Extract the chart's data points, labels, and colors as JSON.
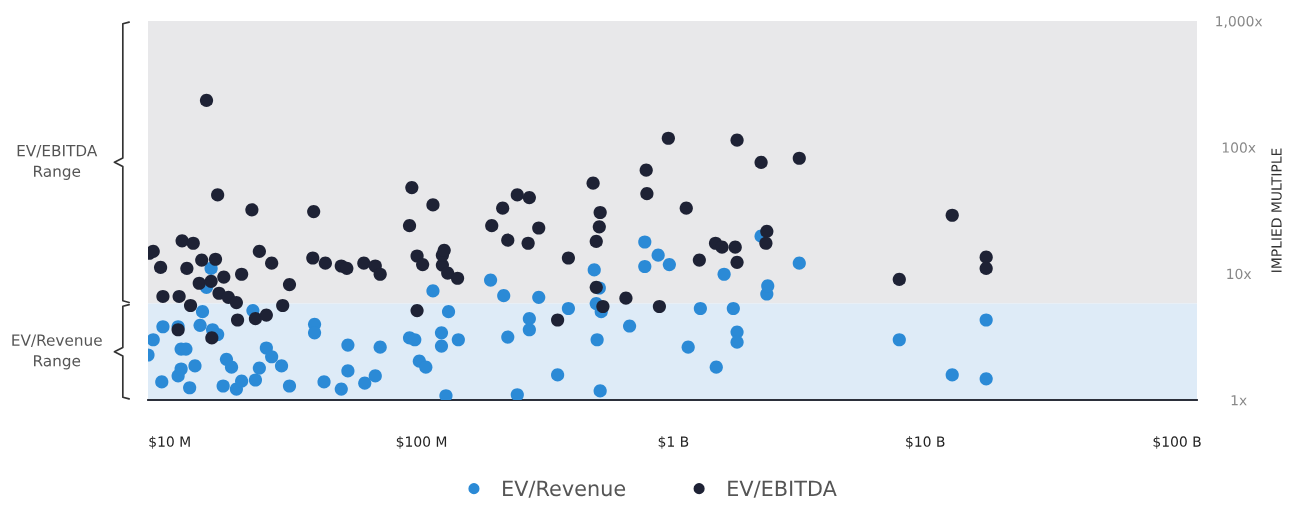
{
  "chart_data": {
    "type": "scatter",
    "ylabel": "IMPLIED MULTIPLE",
    "log": "xy",
    "xlim": [
      8200000.0,
      120000000000.0
    ],
    "ylim": [
      1,
      1000
    ],
    "xticks": [
      {
        "value": 10000000.0,
        "label": "$10 M"
      },
      {
        "value": 100000000.0,
        "label": "$100 M"
      },
      {
        "value": 1000000000.0,
        "label": "$1 B"
      },
      {
        "value": 10000000000.0,
        "label": "$10 B"
      },
      {
        "value": 100000000000.0,
        "label": "$100 B"
      }
    ],
    "yticks": [
      {
        "value": 1,
        "label": "1x"
      },
      {
        "value": 10,
        "label": "10x"
      },
      {
        "value": 100,
        "label": "100x"
      },
      {
        "value": 1000,
        "label": "1,000x"
      }
    ],
    "annotations": [
      "EV/EBITDA\nRange",
      "EV/Revenue\nRange"
    ],
    "grid": false,
    "legend": "bottom",
    "marker": "circle",
    "bands": [
      {
        "axis": "y",
        "from": 5.8,
        "to": 1000,
        "color": "#e8e8ea"
      },
      {
        "axis": "y",
        "from": 1,
        "to": 5.8,
        "color": "#deebf7"
      }
    ],
    "series": [
      {
        "name": "EV/Revenue",
        "color": "#2b8ad6",
        "x": [
          8200000.0,
          8600000.0,
          9300000.0,
          9400000.0,
          10800000.0,
          10800000.0,
          11100000.0,
          11100000.0,
          11600000.0,
          12000000.0,
          12600000.0,
          13200000.0,
          13500000.0,
          14600000.0,
          14000000.0,
          14800000.0,
          15500000.0,
          16300000.0,
          16800000.0,
          17600000.0,
          18400000.0,
          19300000.0,
          21400000.0,
          22700000.0,
          21900000.0,
          24200000.0,
          25400000.0,
          27800000.0,
          29900000.0,
          37600000.0,
          37600000.0,
          41000000.0,
          48000000.0,
          51000000.0,
          51000000.0,
          59500000.0,
          65500000.0,
          68500000.0,
          89600000.0,
          94000000.0,
          98000000.0,
          104000000.0,
          111000000.0,
          120000000.0,
          120000000.0,
          128000000.0,
          140000000.0,
          125000000.0,
          188000000.0,
          212000000.0,
          220000000.0,
          240000000.0,
          268000000.0,
          268000000.0,
          292000000.0,
          347000000.0,
          383000000.0,
          485000000.0,
          494000000.0,
          498000000.0,
          508000000.0,
          517000000.0,
          512000000.0,
          670000000.0,
          770000000.0,
          770000000.0,
          870000000.0,
          964000000.0,
          1145000000.0,
          1280000000.0,
          1480000000.0,
          1590000000.0,
          1730000000.0,
          1790000000.0,
          1790000000.0,
          2230000000.0,
          2350000000.0,
          2370000000.0,
          3162000000.0,
          7890000000.0,
          12800000000.0,
          17460000000.0,
          17460000000.0
        ],
        "values": [
          2.27,
          3.0,
          1.39,
          3.8,
          3.8,
          1.55,
          1.76,
          2.53,
          2.53,
          1.25,
          1.86,
          3.9,
          5.0,
          11,
          7.8,
          3.6,
          3.3,
          1.29,
          2.1,
          1.82,
          1.22,
          1.41,
          5.1,
          1.79,
          1.44,
          2.58,
          2.2,
          1.86,
          1.29,
          3.97,
          3.4,
          1.39,
          1.22,
          1.7,
          2.72,
          1.36,
          1.55,
          2.62,
          3.1,
          3.0,
          2.03,
          1.82,
          7.3,
          3.4,
          2.67,
          5.0,
          3.0,
          1.08,
          8.9,
          6.7,
          3.15,
          1.1,
          3.6,
          4.4,
          6.5,
          1.58,
          5.3,
          10.7,
          5.8,
          3.0,
          7.7,
          5.0,
          1.18,
          3.85,
          17.8,
          11.4,
          14,
          11.8,
          2.62,
          5.3,
          1.82,
          9.9,
          5.3,
          3.45,
          2.87,
          19.8,
          6.9,
          8.0,
          12.1,
          3.0,
          1.58,
          1.47,
          4.3
        ]
      },
      {
        "name": "EV/EBITDA",
        "color": "#1e2235",
        "x": [
          8300000.0,
          8600000.0,
          9200000.0,
          9400000.0,
          10900000.0,
          11200000.0,
          11700000.0,
          12400000.0,
          12100000.0,
          10800000.0,
          13400000.0,
          13100000.0,
          14000000.0,
          14600000.0,
          15200000.0,
          15500000.0,
          15700000.0,
          16400000.0,
          14700000.0,
          17100000.0,
          18400000.0,
          18600000.0,
          19300000.0,
          21200000.0,
          21900000.0,
          22700000.0,
          24200000.0,
          25400000.0,
          28100000.0,
          29900000.0,
          37300000.0,
          37000000.0,
          41500000.0,
          48000000.0,
          50500000.0,
          59000000.0,
          65500000.0,
          68500000.0,
          91500000.0,
          89600000.0,
          96000000.0,
          96000000.0,
          101000000.0,
          111000000.0,
          121000000.0,
          121000000.0,
          123000000.0,
          127000000.0,
          139000000.0,
          190000000.0,
          210000000.0,
          220000000.0,
          240000000.0,
          265000000.0,
          268000000.0,
          292000000.0,
          347000000.0,
          383000000.0,
          480000000.0,
          494000000.0,
          494000000.0,
          508000000.0,
          512000000.0,
          525000000.0,
          648000000.0,
          780000000.0,
          785000000.0,
          880000000.0,
          955000000.0,
          1125000000.0,
          1268000000.0,
          1470000000.0,
          1560000000.0,
          1760000000.0,
          1790000000.0,
          1790000000.0,
          2230000000.0,
          2350000000.0,
          2330000000.0,
          3162000000.0,
          7890000000.0,
          12800000000.0,
          17460000000.0,
          17460000000.0
        ],
        "values": [
          14.5,
          15,
          11.2,
          6.6,
          6.6,
          18.2,
          11,
          17.4,
          5.6,
          3.6,
          12.8,
          8.4,
          235,
          8.7,
          13,
          42,
          7,
          9.4,
          3.1,
          6.5,
          5.9,
          4.3,
          9.9,
          32,
          4.4,
          15,
          4.7,
          12.1,
          5.6,
          8.2,
          31,
          13.3,
          12.1,
          11.5,
          11,
          12.1,
          11.5,
          9.9,
          48,
          24,
          13.8,
          5.1,
          11.8,
          35,
          11.7,
          14,
          15.3,
          10.1,
          9.2,
          24,
          33,
          18.4,
          42,
          17.4,
          40,
          23,
          4.3,
          13.3,
          52,
          18,
          7.8,
          23.5,
          30.5,
          5.5,
          6.4,
          66,
          43,
          5.5,
          118,
          33,
          12.8,
          17.4,
          16.2,
          16.2,
          12.3,
          114,
          76,
          21.6,
          17.4,
          82,
          9,
          29,
          13.5,
          11
        ]
      }
    ]
  }
}
